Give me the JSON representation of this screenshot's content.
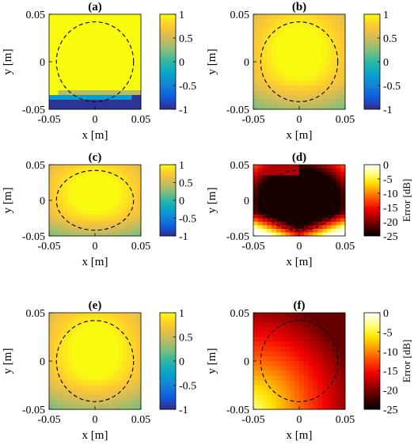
{
  "figure": {
    "colors": {
      "parula": [
        "#352a87",
        "#0f5cdd",
        "#1481d6",
        "#06a4ca",
        "#2eb7a4",
        "#87bf77",
        "#d1bb59",
        "#fec832",
        "#f9fb0e"
      ],
      "hot": [
        "#000000",
        "#4d0000",
        "#a00000",
        "#f00000",
        "#ff4400",
        "#ff9600",
        "#ffe500",
        "#ffff80",
        "#ffffff"
      ],
      "circle": "#000000"
    }
  },
  "chart_data": [
    {
      "id": "a",
      "type": "heatmap",
      "title": "(a)",
      "xlabel": "x [m]",
      "ylabel": "y [m]",
      "xlim": [
        -0.05,
        0.05
      ],
      "ylim": [
        -0.05,
        0.05
      ],
      "xticks": [
        "-0.05",
        "0",
        "0.05"
      ],
      "yticks": [
        "0.05",
        "0",
        "-0.05"
      ],
      "colormap": "parula",
      "clim": [
        -1,
        1
      ],
      "colorbar_ticks": [
        "1",
        "0.5",
        "0",
        "-0.5",
        "-1"
      ],
      "colorbar_label": "",
      "circle_radius": 0.042,
      "grid_size": 20,
      "field": "field_a",
      "values_note": "≈1 above a diagonal edge near y≈-0.035 (x=-0.05) to y≈-0.027 (x=0.05); drops to ≈-1 below it"
    },
    {
      "id": "b",
      "type": "heatmap",
      "title": "(b)",
      "xlabel": "x [m]",
      "ylabel": "y [m]",
      "xlim": [
        -0.05,
        0.05
      ],
      "ylim": [
        -0.05,
        0.05
      ],
      "xticks": [
        "-0.05",
        "0",
        "0.05"
      ],
      "yticks": [
        "0.05",
        "0",
        "-0.05"
      ],
      "colormap": "parula",
      "clim": [
        -1,
        1
      ],
      "colorbar_ticks": [
        "1",
        "0.5",
        "0",
        "-0.5",
        "-1"
      ],
      "colorbar_label": "",
      "circle_radius": 0.042,
      "grid_size": 20,
      "field": "field_smooth"
    },
    {
      "id": "c",
      "type": "heatmap",
      "title": "(c)",
      "xlabel": "x [m]",
      "ylabel": "y [m]",
      "xlim": [
        -0.05,
        0.05
      ],
      "ylim": [
        -0.05,
        0.05
      ],
      "xticks": [
        "-0.05",
        "0",
        "0.05"
      ],
      "yticks": [
        "0.05",
        "0",
        "-0.05"
      ],
      "colormap": "parula",
      "clim": [
        -1,
        1
      ],
      "colorbar_ticks": [
        "1",
        "0.5",
        "0",
        "-0.5",
        "-1"
      ],
      "colorbar_label": "",
      "circle_radius": 0.042,
      "grid_size": 20,
      "field": "field_smooth"
    },
    {
      "id": "d",
      "type": "heatmap",
      "title": "(d)",
      "xlabel": "x [m]",
      "ylabel": "y [m]",
      "xlim": [
        -0.05,
        0.05
      ],
      "ylim": [
        -0.05,
        0.05
      ],
      "xticks": [
        "-0.05",
        "0",
        "0.05"
      ],
      "yticks": [
        "0.05",
        "0",
        "-0.05"
      ],
      "colormap": "hot",
      "clim": [
        -25,
        0
      ],
      "colorbar_ticks": [
        "0",
        "-5",
        "-10",
        "-15",
        "-20",
        "-25"
      ],
      "colorbar_label": "Error [dB]",
      "circle_radius": 0.042,
      "grid_size": 20,
      "field": "error_d"
    },
    {
      "id": "e",
      "type": "heatmap",
      "title": "(e)",
      "xlabel": "x [m]",
      "ylabel": "y [m]",
      "xlim": [
        -0.05,
        0.05
      ],
      "ylim": [
        -0.05,
        0.05
      ],
      "xticks": [
        "-0.05",
        "0",
        "0.05"
      ],
      "yticks": [
        "0.05",
        "0",
        "-0.05"
      ],
      "colormap": "parula",
      "clim": [
        -1,
        1
      ],
      "colorbar_ticks": [
        "1",
        "0.5",
        "0",
        "-0.5",
        "-1"
      ],
      "colorbar_label": "",
      "circle_radius": 0.042,
      "grid_size": 20,
      "field": "field_smooth"
    },
    {
      "id": "f",
      "type": "heatmap",
      "title": "(f)",
      "xlabel": "x [m]",
      "ylabel": "y [m]",
      "xlim": [
        -0.05,
        0.05
      ],
      "ylim": [
        -0.05,
        0.05
      ],
      "xticks": [
        "-0.05",
        "0",
        "0.05"
      ],
      "yticks": [
        "0.05",
        "0",
        "-0.05"
      ],
      "colormap": "hot",
      "clim": [
        -25,
        0
      ],
      "colorbar_ticks": [
        "0",
        "-5",
        "-10",
        "-15",
        "-20",
        "-25"
      ],
      "colorbar_label": "Error [dB]",
      "circle_radius": 0.042,
      "grid_size": 20,
      "field": "error_f"
    }
  ]
}
